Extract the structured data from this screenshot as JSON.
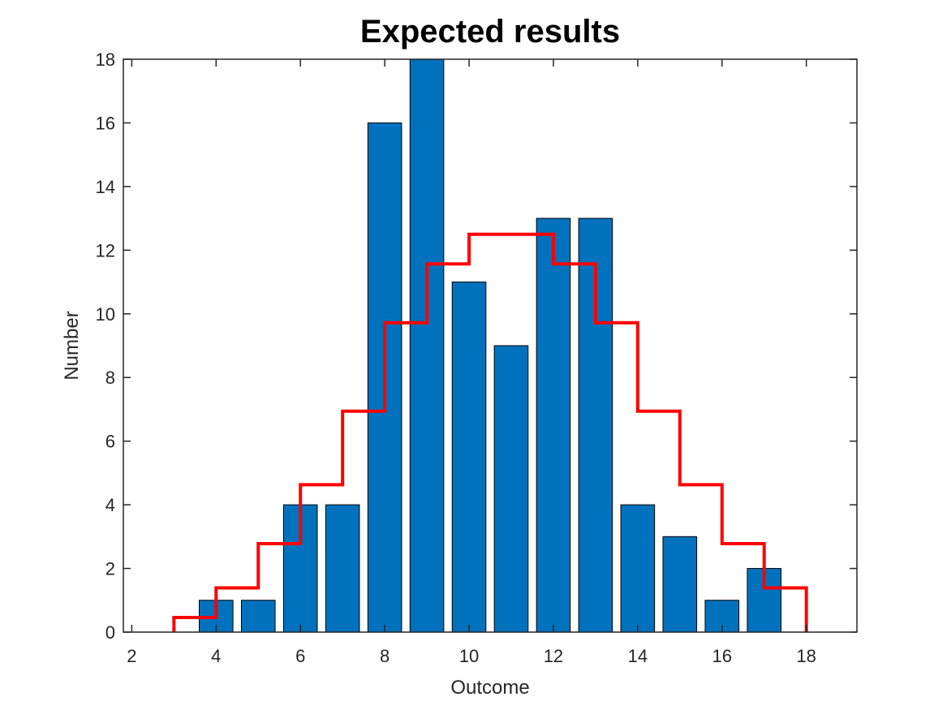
{
  "chart_data": {
    "type": "bar",
    "title": "Expected results",
    "xlabel": "Outcome",
    "ylabel": "Number",
    "xlim": [
      1.8,
      19.2
    ],
    "ylim": [
      0,
      18
    ],
    "xticks": [
      2,
      4,
      6,
      8,
      10,
      12,
      14,
      16,
      18
    ],
    "yticks": [
      0,
      2,
      4,
      6,
      8,
      10,
      12,
      14,
      16,
      18
    ],
    "grid": false,
    "bar_color": "#0072BD",
    "bars": {
      "x": [
        4,
        5,
        6,
        7,
        8,
        9,
        10,
        11,
        12,
        13,
        14,
        15,
        16,
        17
      ],
      "values": [
        1,
        1,
        4,
        4,
        16,
        18,
        11,
        9,
        13,
        13,
        4,
        3,
        1,
        2
      ]
    },
    "expected": {
      "type": "stairs",
      "color": "#FF0000",
      "x": [
        3,
        4,
        5,
        6,
        7,
        8,
        9,
        10,
        11,
        12,
        13,
        14,
        15,
        16,
        17
      ],
      "values": [
        0.46,
        1.39,
        2.78,
        4.63,
        6.94,
        9.72,
        11.57,
        12.5,
        12.5,
        11.57,
        9.72,
        6.94,
        4.63,
        2.78,
        1.39
      ]
    }
  }
}
